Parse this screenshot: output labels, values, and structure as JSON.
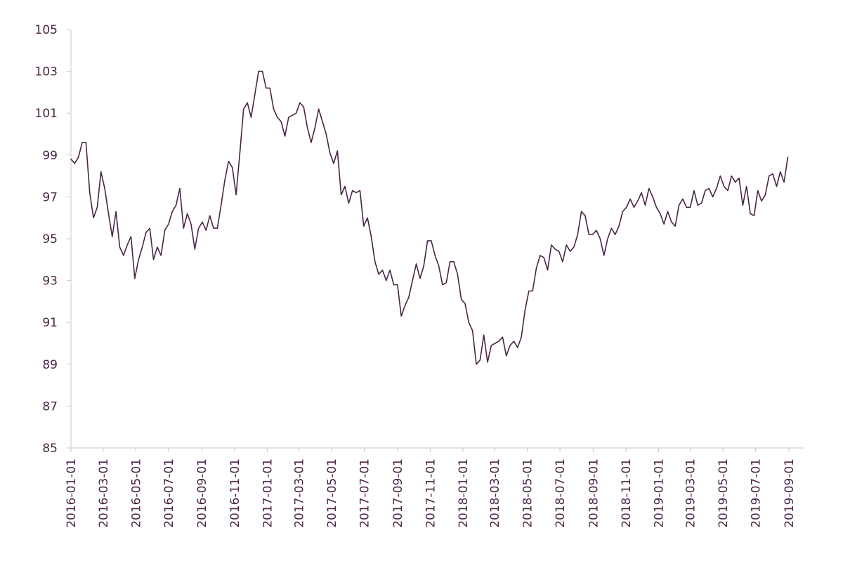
{
  "chart_data": {
    "type": "line",
    "title": "",
    "xlabel": "",
    "ylabel": "",
    "grid": false,
    "legend": "none",
    "ylim": [
      85,
      105
    ],
    "xlim": [
      "2016-01-01",
      "2019-09-01"
    ],
    "yticks": [
      "85",
      "87",
      "89",
      "91",
      "93",
      "95",
      "97",
      "99",
      "101",
      "103",
      "105"
    ],
    "xticks": [
      "2016-01-01",
      "2016-03-01",
      "2016-05-01",
      "2016-07-01",
      "2016-09-01",
      "2016-11-01",
      "2017-01-01",
      "2017-03-01",
      "2017-05-01",
      "2017-07-01",
      "2017-09-01",
      "2017-11-01",
      "2018-01-01",
      "2018-03-01",
      "2018-05-01",
      "2018-07-01",
      "2018-09-01",
      "2018-11-01",
      "2019-01-01",
      "2019-03-01",
      "2019-05-01",
      "2019-07-01",
      "2019-09-01"
    ],
    "colors": {
      "line": "#4a2545",
      "axis": "#c8c8c8",
      "text": "#4a2545"
    },
    "series": [
      {
        "x": [
          "2016-01-01",
          "2016-01-08",
          "2016-01-15",
          "2016-01-22",
          "2016-01-29",
          "2016-02-05",
          "2016-02-12",
          "2016-02-19",
          "2016-02-26",
          "2016-03-04",
          "2016-03-11",
          "2016-03-18",
          "2016-03-25",
          "2016-04-01",
          "2016-04-08",
          "2016-04-15",
          "2016-04-22",
          "2016-04-29",
          "2016-05-06",
          "2016-05-13",
          "2016-05-20",
          "2016-05-27",
          "2016-06-03",
          "2016-06-10",
          "2016-06-17",
          "2016-06-24",
          "2016-07-01",
          "2016-07-08",
          "2016-07-15",
          "2016-07-22",
          "2016-07-29",
          "2016-08-05",
          "2016-08-12",
          "2016-08-19",
          "2016-08-26",
          "2016-09-02",
          "2016-09-09",
          "2016-09-16",
          "2016-09-23",
          "2016-09-30",
          "2016-10-07",
          "2016-10-14",
          "2016-10-21",
          "2016-10-28",
          "2016-11-04",
          "2016-11-11",
          "2016-11-18",
          "2016-11-25",
          "2016-12-02",
          "2016-12-09",
          "2016-12-16",
          "2016-12-23",
          "2016-12-30",
          "2017-01-06",
          "2017-01-13",
          "2017-01-20",
          "2017-01-27",
          "2017-02-03",
          "2017-02-10",
          "2017-02-17",
          "2017-02-24",
          "2017-03-03",
          "2017-03-10",
          "2017-03-17",
          "2017-03-24",
          "2017-03-31",
          "2017-04-07",
          "2017-04-14",
          "2017-04-21",
          "2017-04-28",
          "2017-05-05",
          "2017-05-12",
          "2017-05-19",
          "2017-05-26",
          "2017-06-02",
          "2017-06-09",
          "2017-06-16",
          "2017-06-23",
          "2017-06-30",
          "2017-07-07",
          "2017-07-14",
          "2017-07-21",
          "2017-07-28",
          "2017-08-04",
          "2017-08-11",
          "2017-08-18",
          "2017-08-25",
          "2017-09-01",
          "2017-09-08",
          "2017-09-15",
          "2017-09-22",
          "2017-09-29",
          "2017-10-06",
          "2017-10-13",
          "2017-10-20",
          "2017-10-27",
          "2017-11-03",
          "2017-11-10",
          "2017-11-17",
          "2017-11-24",
          "2017-12-01",
          "2017-12-08",
          "2017-12-15",
          "2017-12-22",
          "2017-12-29",
          "2018-01-05",
          "2018-01-12",
          "2018-01-19",
          "2018-01-26",
          "2018-02-02",
          "2018-02-09",
          "2018-02-16",
          "2018-02-23",
          "2018-03-02",
          "2018-03-09",
          "2018-03-16",
          "2018-03-23",
          "2018-03-30",
          "2018-04-06",
          "2018-04-13",
          "2018-04-20",
          "2018-04-27",
          "2018-05-04",
          "2018-05-11",
          "2018-05-18",
          "2018-05-25",
          "2018-06-01",
          "2018-06-08",
          "2018-06-15",
          "2018-06-22",
          "2018-06-29",
          "2018-07-06",
          "2018-07-13",
          "2018-07-20",
          "2018-07-27",
          "2018-08-03",
          "2018-08-10",
          "2018-08-17",
          "2018-08-24",
          "2018-08-31",
          "2018-09-07",
          "2018-09-14",
          "2018-09-21",
          "2018-09-28",
          "2018-10-05",
          "2018-10-12",
          "2018-10-19",
          "2018-10-26",
          "2018-11-02",
          "2018-11-09",
          "2018-11-16",
          "2018-11-23",
          "2018-11-30",
          "2018-12-07",
          "2018-12-14",
          "2018-12-21",
          "2018-12-28",
          "2019-01-04",
          "2019-01-11",
          "2019-01-18",
          "2019-01-25",
          "2019-02-01",
          "2019-02-08",
          "2019-02-15",
          "2019-02-22",
          "2019-03-01",
          "2019-03-08",
          "2019-03-15",
          "2019-03-22",
          "2019-03-29",
          "2019-04-05",
          "2019-04-12",
          "2019-04-19",
          "2019-04-26",
          "2019-05-03",
          "2019-05-10",
          "2019-05-17",
          "2019-05-24",
          "2019-05-31",
          "2019-06-07",
          "2019-06-14",
          "2019-06-21",
          "2019-06-28",
          "2019-07-05",
          "2019-07-12",
          "2019-07-19",
          "2019-07-26",
          "2019-08-02",
          "2019-08-09",
          "2019-08-16",
          "2019-08-23",
          "2019-08-30"
        ],
        "values": [
          98.8,
          98.6,
          98.9,
          99.6,
          99.6,
          97.2,
          96.0,
          96.5,
          98.2,
          97.4,
          96.2,
          95.1,
          96.3,
          94.6,
          94.2,
          94.7,
          95.1,
          93.1,
          94.0,
          94.6,
          95.3,
          95.5,
          94.0,
          94.6,
          94.2,
          95.4,
          95.7,
          96.3,
          96.6,
          97.4,
          95.5,
          96.2,
          95.7,
          94.5,
          95.5,
          95.8,
          95.4,
          96.1,
          95.5,
          95.5,
          96.6,
          97.8,
          98.7,
          98.4,
          97.1,
          99.1,
          101.2,
          101.5,
          100.8,
          101.9,
          103.0,
          103.0,
          102.2,
          102.2,
          101.2,
          100.8,
          100.6,
          99.9,
          100.8,
          100.9,
          101.0,
          101.5,
          101.3,
          100.3,
          99.6,
          100.3,
          101.2,
          100.6,
          100.0,
          99.1,
          98.6,
          99.2,
          97.1,
          97.5,
          96.7,
          97.3,
          97.2,
          97.3,
          95.6,
          96.0,
          95.1,
          93.9,
          93.3,
          93.5,
          93.0,
          93.5,
          92.8,
          92.8,
          91.3,
          91.8,
          92.2,
          93.0,
          93.8,
          93.1,
          93.7,
          94.9,
          94.9,
          94.2,
          93.7,
          92.8,
          92.9,
          93.9,
          93.9,
          93.3,
          92.1,
          91.9,
          91.0,
          90.6,
          89.0,
          89.2,
          90.4,
          89.1,
          89.9,
          90.0,
          90.1,
          90.3,
          89.4,
          89.9,
          90.1,
          89.8,
          90.3,
          91.6,
          92.5,
          92.5,
          93.6,
          94.2,
          94.1,
          93.5,
          94.7,
          94.5,
          94.4,
          93.9,
          94.7,
          94.4,
          94.6,
          95.2,
          96.3,
          96.1,
          95.2,
          95.2,
          95.4,
          95.0,
          94.2,
          95.0,
          95.5,
          95.2,
          95.6,
          96.3,
          96.5,
          96.9,
          96.5,
          96.8,
          97.2,
          96.6,
          97.4,
          97.0,
          96.5,
          96.2,
          95.7,
          96.3,
          95.8,
          95.6,
          96.6,
          96.9,
          96.5,
          96.5,
          97.3,
          96.6,
          96.7,
          97.3,
          97.4,
          97.0,
          97.4,
          98.0,
          97.5,
          97.3,
          98.0,
          97.7,
          97.9,
          96.6,
          97.5,
          96.2,
          96.1,
          97.3,
          96.8,
          97.1,
          98.0,
          98.1,
          97.5,
          98.2,
          97.7,
          98.9
        ]
      }
    ]
  }
}
